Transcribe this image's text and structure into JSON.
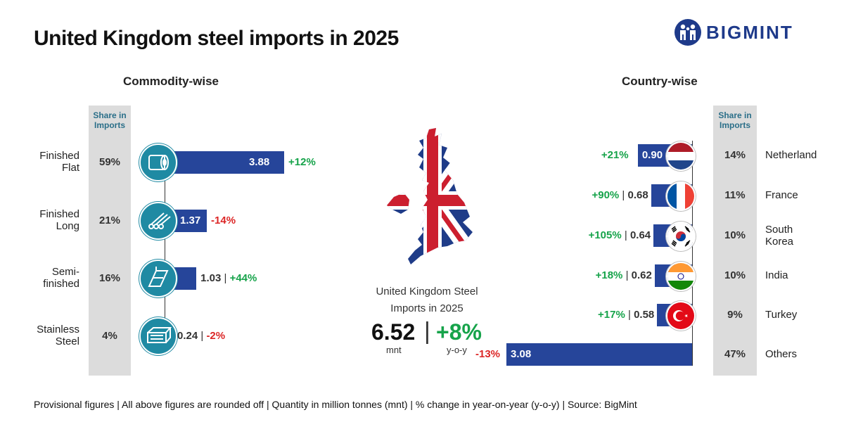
{
  "title": "United Kingdom steel imports in 2025",
  "brand": "BIGMINT",
  "commodity": {
    "heading": "Commodity-wise",
    "share_header": "Share in Imports"
  },
  "country": {
    "heading": "Country-wise",
    "share_header": "Share in Imports"
  },
  "center": {
    "caption_line1": "United Kingdom Steel",
    "caption_line2": "Imports in 2025",
    "total": "6.52",
    "separator": "|",
    "change": "+8%",
    "total_unit": "mnt",
    "change_unit": "y-o-y"
  },
  "footer": "Provisional figures | All above figures are rounded off | Quantity in million tonnes (mnt) | % change in year-on-year (y-o-y) | Source: BigMint",
  "chart_data": [
    {
      "type": "bar",
      "title": "Commodity-wise",
      "categories": [
        "Finished Flat",
        "Finished Long",
        "Semi-finished",
        "Stainless Steel"
      ],
      "values": [
        3.88,
        1.37,
        1.03,
        0.24
      ],
      "value_labels": [
        "3.88",
        "1.37",
        "1.03",
        "0.24"
      ],
      "yoy_change": [
        "+12%",
        "-14%",
        "+44%",
        "-2%"
      ],
      "share_in_imports": [
        "59%",
        "21%",
        "16%",
        "4%"
      ],
      "icons": [
        "coil-icon",
        "rods-icon",
        "beam-icon",
        "stainless-bundle-icon"
      ],
      "orientation": "horizontal",
      "grid": false,
      "colors": {
        "bar": "#26459a",
        "positive": "#16a34a",
        "negative": "#dc2626",
        "icon": "#1f8aa3",
        "share_column": "#dcdcdc"
      }
    },
    {
      "type": "bar",
      "title": "Country-wise",
      "categories": [
        "Netherland",
        "France",
        "South Korea",
        "India",
        "Turkey",
        "Others"
      ],
      "values": [
        0.9,
        0.68,
        0.64,
        0.62,
        0.58,
        3.08
      ],
      "value_labels": [
        "0.90",
        "0.68",
        "0.64",
        "0.62",
        "0.58",
        "3.08"
      ],
      "yoy_change": [
        "+21%",
        "+90%",
        "+105%",
        "+18%",
        "+17%",
        "-13%"
      ],
      "share_in_imports": [
        "14%",
        "11%",
        "10%",
        "10%",
        "9%",
        "47%"
      ],
      "flags": [
        "netherlands-flag-icon",
        "france-flag-icon",
        "south-korea-flag-icon",
        "india-flag-icon",
        "turkey-flag-icon",
        ""
      ],
      "orientation": "horizontal-reversed",
      "grid": false,
      "colors": {
        "bar": "#26459a",
        "positive": "#16a34a",
        "negative": "#dc2626",
        "share_column": "#dcdcdc"
      }
    }
  ]
}
